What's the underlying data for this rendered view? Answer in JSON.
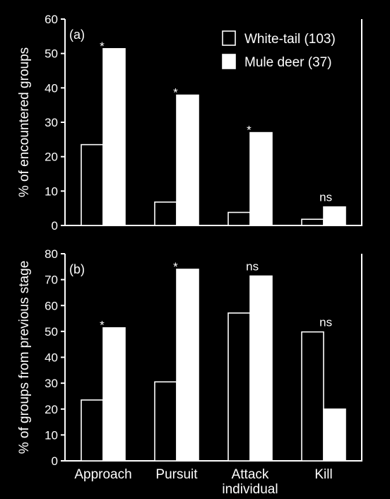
{
  "colors": {
    "background": "#000000",
    "foreground": "#ffffff"
  },
  "chart_data": [
    {
      "type": "bar",
      "panel_label": "(a)",
      "categories": [
        "Approach",
        "Pursuit",
        "Attack individual",
        "Kill"
      ],
      "category_lines": [
        [
          "Approach"
        ],
        [
          "Pursuit"
        ],
        [
          "Attack",
          "individual"
        ],
        [
          "Kill"
        ]
      ],
      "ylabel": "% of encountered groups",
      "ylim": [
        0,
        60
      ],
      "yticks": [
        0,
        10,
        20,
        30,
        40,
        50,
        60
      ],
      "series": [
        {
          "name": "White-tail (103)",
          "style": "outline",
          "values": [
            23.5,
            6.8,
            3.8,
            1.8
          ]
        },
        {
          "name": "Mule deer (37)",
          "style": "filled",
          "values": [
            51.4,
            37.9,
            27.0,
            5.4
          ]
        }
      ],
      "significance": [
        "*",
        "*",
        "*",
        "ns"
      ],
      "legend": "top-right",
      "grid": false
    },
    {
      "type": "bar",
      "panel_label": "(b)",
      "categories": [
        "Approach",
        "Pursuit",
        "Attack individual",
        "Kill"
      ],
      "category_lines": [
        [
          "Approach"
        ],
        [
          "Pursuit"
        ],
        [
          "Attack",
          "individual"
        ],
        [
          "Kill"
        ]
      ],
      "ylabel": "% of groups from previous stage",
      "ylim": [
        0,
        80
      ],
      "yticks": [
        0,
        10,
        20,
        30,
        40,
        50,
        60,
        70,
        80
      ],
      "series": [
        {
          "name": "White-tail (103)",
          "style": "outline",
          "values": [
            23.5,
            30.5,
            57.1,
            49.8
          ]
        },
        {
          "name": "Mule deer (37)",
          "style": "filled",
          "values": [
            51.4,
            74.0,
            71.4,
            20.0
          ]
        }
      ],
      "significance": [
        "*",
        "*",
        "ns",
        "ns"
      ],
      "legend": "none",
      "grid": false
    }
  ]
}
